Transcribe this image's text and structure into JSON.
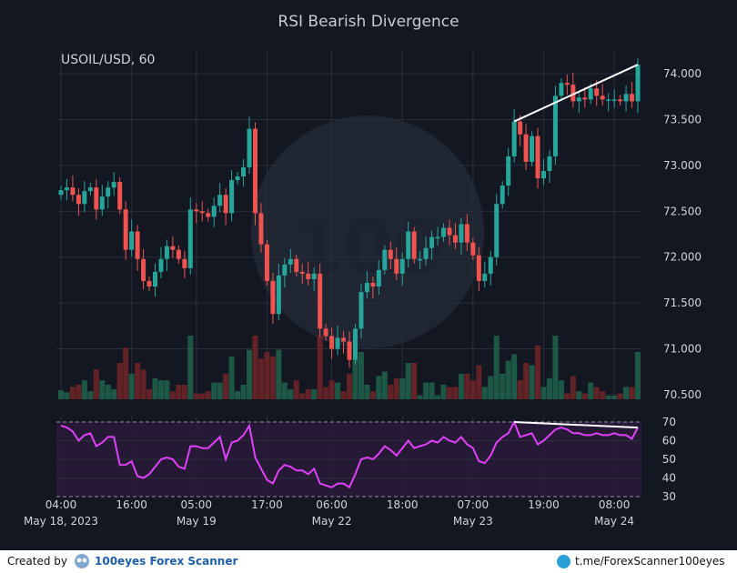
{
  "chart_data": {
    "type": "candlestick",
    "title": "RSI Bearish Divergence",
    "symbol_label": "USOIL/USD, 60",
    "price_ylim": [
      70.45,
      74.15
    ],
    "price_ticks": [
      "70.500",
      "71.000",
      "71.500",
      "72.000",
      "72.500",
      "73.000",
      "73.500",
      "74.000"
    ],
    "x_ticks": [
      {
        "index": 0,
        "time": "04:00",
        "date": "May 18, 2023"
      },
      {
        "index": 12,
        "time": "16:00",
        "date": ""
      },
      {
        "index": 23,
        "time": "05:00",
        "date": "May 19"
      },
      {
        "index": 35,
        "time": "17:00",
        "date": ""
      },
      {
        "index": 46,
        "time": "06:00",
        "date": "May 22"
      },
      {
        "index": 58,
        "time": "18:00",
        "date": ""
      },
      {
        "index": 70,
        "time": "07:00",
        "date": "May 23"
      },
      {
        "index": 82,
        "time": "19:00",
        "date": ""
      },
      {
        "index": 94,
        "time": "08:00",
        "date": "May 24"
      }
    ],
    "closes": [
      72.73,
      72.76,
      72.68,
      72.58,
      72.72,
      72.76,
      72.52,
      72.66,
      72.76,
      72.82,
      72.52,
      72.08,
      72.28,
      71.98,
      71.74,
      71.68,
      71.84,
      71.98,
      72.12,
      72.08,
      71.98,
      71.88,
      72.52,
      72.5,
      72.48,
      72.44,
      72.56,
      72.68,
      72.48,
      72.84,
      72.88,
      72.98,
      73.4,
      72.48,
      72.14,
      71.74,
      71.38,
      71.8,
      71.92,
      71.98,
      71.84,
      71.82,
      71.76,
      71.82,
      71.22,
      71.14,
      71.0,
      71.12,
      71.08,
      70.88,
      71.22,
      71.62,
      71.72,
      71.68,
      71.86,
      72.08,
      71.98,
      71.82,
      71.98,
      72.28,
      71.98,
      71.98,
      72.1,
      72.22,
      72.22,
      72.32,
      72.24,
      72.16,
      72.36,
      72.16,
      72.02,
      71.74,
      71.82,
      72.0,
      72.58,
      72.78,
      73.1,
      73.48,
      73.34,
      73.04,
      73.32,
      72.86,
      72.94,
      73.1,
      73.76,
      73.9,
      73.88,
      73.7,
      73.74,
      73.72,
      73.84,
      73.76,
      73.72,
      73.72,
      73.72,
      73.7,
      73.78,
      73.7,
      74.1
    ],
    "volume_max_label": "",
    "rsi": {
      "ylim": [
        30,
        70
      ],
      "ticks": [
        "30",
        "40",
        "50",
        "60",
        "70"
      ],
      "values": [
        68,
        67,
        65,
        60,
        63,
        64,
        57,
        59,
        62,
        62,
        47,
        47,
        49,
        41,
        40,
        42,
        46,
        50,
        51,
        50,
        46,
        45,
        57,
        57,
        56,
        56,
        59,
        62,
        50,
        59,
        60,
        63,
        68,
        51,
        45,
        39,
        37,
        44,
        47,
        46,
        44,
        44,
        42,
        45,
        37,
        36,
        35,
        37,
        37,
        35,
        42,
        50,
        51,
        50,
        53,
        57,
        55,
        52,
        56,
        60,
        56,
        57,
        58,
        60,
        59,
        62,
        60,
        59,
        62,
        58,
        56,
        49,
        48,
        52,
        59,
        62,
        64,
        70,
        62,
        63,
        64,
        58,
        60,
        63,
        66,
        67,
        66,
        64,
        64,
        63,
        63,
        64,
        63,
        63,
        64,
        63,
        63,
        61,
        67
      ]
    },
    "divergence": {
      "price_from": {
        "index": 77,
        "value": 73.48
      },
      "price_to": {
        "index": 98,
        "value": 74.1
      },
      "rsi_from": {
        "index": 77,
        "value": 70
      },
      "rsi_to": {
        "index": 98,
        "value": 67
      }
    },
    "colors": {
      "up": "#26a69a",
      "down": "#ef5350",
      "rsi_line": "#e040fb",
      "rsi_band": "#2a1a3a",
      "divergence": "#ffffff",
      "grid": "#2a2e39",
      "text": "#d1d4dc"
    },
    "grid": true
  },
  "footer": {
    "created_by": "Created by",
    "brand": "100eyes  Forex  Scanner",
    "telegram": "t.me/ForexScanner100eyes"
  }
}
